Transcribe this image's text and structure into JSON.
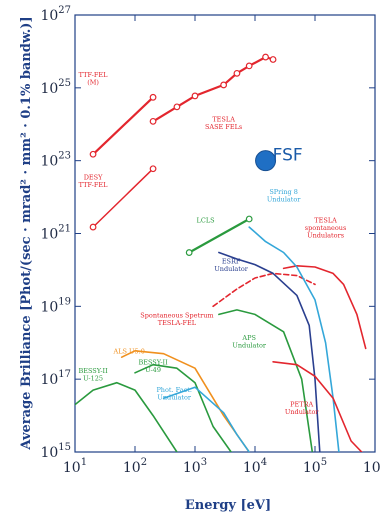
{
  "colors": {
    "axis_text": "#1f3f86",
    "frame": "#1f3f86",
    "red": "#e3262e",
    "green": "#2a9a3e",
    "orange": "#f0901e",
    "navy": "#2a3f8f",
    "cyan": "#34a7d9",
    "fsf_fill": "#1f6fc4",
    "fsf_text": "#1a5aa8"
  },
  "chart_data": {
    "type": "line",
    "xlabel": "Energy [eV]",
    "ylabel": "Average Brilliance [Phot/(sec · mrad² · mm² · 0.1% bandw.)]",
    "x_scale": "log",
    "y_scale": "log",
    "xlim": [
      10,
      1000000
    ],
    "ylim": [
      1000000000000000.0,
      1e+27
    ],
    "x_ticks": [
      {
        "base": "10",
        "exp": "1",
        "value": 10
      },
      {
        "base": "10",
        "exp": "2",
        "value": 100
      },
      {
        "base": "10",
        "exp": "3",
        "value": 1000
      },
      {
        "base": "10",
        "exp": "4",
        "value": 10000
      },
      {
        "base": "10",
        "exp": "5",
        "value": 100000
      },
      {
        "base": "10",
        "exp": "6",
        "value": 1000000
      }
    ],
    "y_ticks": [
      {
        "base": "10",
        "exp": "15",
        "value": 1000000000000000.0
      },
      {
        "base": "10",
        "exp": "17",
        "value": 1e+17
      },
      {
        "base": "10",
        "exp": "19",
        "value": 1e+19
      },
      {
        "base": "10",
        "exp": "21",
        "value": 1e+21
      },
      {
        "base": "10",
        "exp": "23",
        "value": 1e+23
      },
      {
        "base": "10",
        "exp": "25",
        "value": 1e+25
      },
      {
        "base": "10",
        "exp": "27",
        "value": 1e+27
      }
    ],
    "series": [
      {
        "id": "ttf-fel-m",
        "color": "red",
        "width": 2.2,
        "marker": "o",
        "x": [
          20,
          200
        ],
        "y": [
          1.5e+23,
          5.5e+24
        ]
      },
      {
        "id": "tesla-sase",
        "color": "red",
        "width": 2.2,
        "marker": "o",
        "x": [
          200,
          500,
          1000,
          3000,
          5000,
          8000,
          15000,
          20000
        ],
        "y": [
          1.2e+24,
          3e+24,
          6e+24,
          1.2e+25,
          2.5e+25,
          4e+25,
          7e+25,
          6e+25
        ]
      },
      {
        "id": "desy-ttf-fel",
        "color": "red",
        "width": 1.5,
        "marker": "o",
        "x": [
          20,
          200
        ],
        "y": [
          1.5e+21,
          6e+22
        ]
      },
      {
        "id": "lcls",
        "color": "green",
        "width": 2.2,
        "marker": "o",
        "x": [
          800,
          8000
        ],
        "y": [
          3e+20,
          2.5e+21
        ]
      },
      {
        "id": "tesla-spontaneous",
        "color": "red",
        "width": 1.6,
        "marker": "none",
        "x": [
          30000,
          50000,
          100000,
          200000,
          300000,
          500000,
          700000
        ],
        "y": [
          1.1e+20,
          1.3e+20,
          1.2e+20,
          8e+19,
          4e+19,
          6e+18,
          7e+17
        ]
      },
      {
        "id": "tesla-fel-spontaneous-dashed",
        "color": "red",
        "width": 1.6,
        "dashed": true,
        "marker": "none",
        "x": [
          2000,
          5000,
          10000,
          20000,
          50000,
          100000
        ],
        "y": [
          1e+19,
          3e+19,
          6e+19,
          8e+19,
          7e+19,
          4e+19
        ]
      },
      {
        "id": "esrf",
        "color": "navy",
        "width": 1.6,
        "marker": "none",
        "x": [
          2500,
          5000,
          10000,
          20000,
          50000,
          80000,
          100000,
          120000
        ],
        "y": [
          3e+20,
          2e+20,
          1.4e+20,
          8e+19,
          2e+19,
          3e+18,
          1e+17,
          1000000000000000.0
        ]
      },
      {
        "id": "spring8",
        "color": "cyan",
        "width": 1.6,
        "marker": "none",
        "x": [
          8000,
          15000,
          30000,
          50000,
          100000,
          150000,
          200000,
          250000
        ],
        "y": [
          1.5e+21,
          6e+20,
          3e+20,
          1.2e+20,
          1.5e+19,
          1e+18,
          3e+16,
          1000000000000000.0
        ]
      },
      {
        "id": "aps",
        "color": "green",
        "width": 1.6,
        "marker": "none",
        "x": [
          2500,
          5000,
          10000,
          30000,
          60000,
          90000
        ],
        "y": [
          6e+18,
          8e+18,
          6e+18,
          2e+18,
          1e+17,
          1000000000000000.0
        ]
      },
      {
        "id": "petra",
        "color": "red",
        "width": 1.6,
        "marker": "none",
        "x": [
          20000,
          50000,
          100000,
          200000,
          400000,
          600000
        ],
        "y": [
          3e+17,
          2.5e+17,
          1.2e+17,
          3e+16,
          2000000000000000.0,
          1000000000000000.0
        ]
      },
      {
        "id": "als-u5",
        "color": "orange",
        "width": 1.6,
        "marker": "none",
        "x": [
          60,
          100,
          300,
          1000,
          3000,
          8000
        ],
        "y": [
          4e+17,
          6e+17,
          5e+17,
          2e+17,
          1e+16,
          1000000000000000.0
        ]
      },
      {
        "id": "bessy-ii-u49",
        "color": "green",
        "width": 1.6,
        "marker": "none",
        "x": [
          100,
          200,
          500,
          1000,
          2000,
          4000
        ],
        "y": [
          1.5e+17,
          2.5e+17,
          2e+17,
          8e+16,
          5000000000000000.0,
          1000000000000000.0
        ]
      },
      {
        "id": "bessy-ii-u125",
        "color": "green",
        "width": 1.6,
        "marker": "none",
        "x": [
          10,
          20,
          50,
          100,
          200,
          500,
          700
        ],
        "y": [
          2e+16,
          5e+16,
          8e+16,
          5e+16,
          1e+16,
          1000000000000000.0,
          500000000000000.0
        ]
      },
      {
        "id": "phot-fact",
        "color": "cyan",
        "width": 1.6,
        "marker": "none",
        "x": [
          300,
          1000,
          3000,
          5000,
          8000
        ],
        "y": [
          3e+16,
          6e+16,
          1.2e+16,
          3000000000000000.0,
          1000000000000000.0
        ]
      }
    ],
    "fsf_point": {
      "x": 15000,
      "y": 1e+23
    },
    "annotations": [
      {
        "id": "ttf-fel-m",
        "lines": [
          "TTF-FEL",
          "(M)"
        ],
        "color": "red",
        "x": 20,
        "y": 2e+25
      },
      {
        "id": "tesla-sase",
        "lines": [
          "TESLA",
          "SASE FELs"
        ],
        "color": "red",
        "x": 3000,
        "y": 1.2e+24
      },
      {
        "id": "desy-ttf-fel",
        "lines": [
          "DESY",
          "TTF-FEL"
        ],
        "color": "red",
        "x": 20,
        "y": 3e+22
      },
      {
        "id": "fsf",
        "lines": [
          "FSF"
        ],
        "color": "fsf_text",
        "x": 35000,
        "y": 1e+23
      },
      {
        "id": "lcls",
        "lines": [
          "LCLS"
        ],
        "color": "green",
        "x": 1500,
        "y": 2e+21
      },
      {
        "id": "spring8",
        "lines": [
          "SPring 8",
          "Undulator"
        ],
        "color": "cyan",
        "x": 30000,
        "y": 1.2e+22
      },
      {
        "id": "tesla-spontaneous",
        "lines": [
          "TESLA",
          "spontaneous",
          "Undulators"
        ],
        "color": "red",
        "x": 150000,
        "y": 2e+21
      },
      {
        "id": "esrf",
        "lines": [
          "ESRF",
          "Undulator"
        ],
        "color": "navy",
        "x": 4000,
        "y": 1.5e+20
      },
      {
        "id": "spont-tesla-fel",
        "lines": [
          "Spontaneous Spetrum",
          "TESLA-FEL"
        ],
        "color": "red",
        "x": 500,
        "y": 5e+18
      },
      {
        "id": "aps",
        "lines": [
          "APS",
          "Undulator"
        ],
        "color": "green",
        "x": 8000,
        "y": 1.2e+18
      },
      {
        "id": "als-u5",
        "lines": [
          "ALS U5.0"
        ],
        "color": "orange",
        "x": 80,
        "y": 5e+17
      },
      {
        "id": "bessy-ii-u49",
        "lines": [
          "BESSY-II",
          "U-49"
        ],
        "color": "green",
        "x": 200,
        "y": 2.5e+17
      },
      {
        "id": "bessy-ii-u125",
        "lines": [
          "BESSY-II",
          "U-125"
        ],
        "color": "green",
        "x": 20,
        "y": 1.5e+17
      },
      {
        "id": "petra",
        "lines": [
          "PETRA",
          "Undulator"
        ],
        "color": "red",
        "x": 60000,
        "y": 1.8e+16
      },
      {
        "id": "phot-fact",
        "lines": [
          "Phot. Fact.",
          "Undulator"
        ],
        "color": "cyan",
        "x": 450,
        "y": 4.5e+16
      }
    ]
  }
}
